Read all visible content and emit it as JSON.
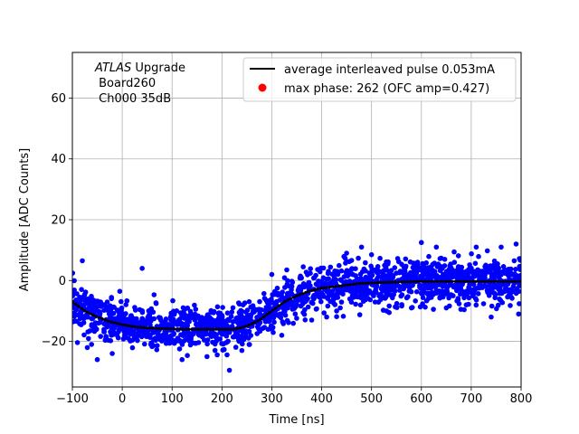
{
  "chart_data": {
    "type": "scatter",
    "xlabel": "Time [ns]",
    "ylabel": "Amplitude [ADC Counts]",
    "xlim": [
      -100,
      800
    ],
    "ylim": [
      -35,
      75
    ],
    "xticks": [
      -100,
      0,
      100,
      200,
      300,
      400,
      500,
      600,
      700,
      800
    ],
    "yticks": [
      -20,
      0,
      20,
      40,
      60
    ],
    "grid": true,
    "legend_position": "top-right",
    "annotation": {
      "italic": "ATLAS",
      "rest": " Upgrade",
      "line2": " Board260",
      "line3": " Ch000 35dB"
    },
    "legend": [
      {
        "label": "average interleaved pulse 0.053mA",
        "kind": "line",
        "color": "#000000"
      },
      {
        "label": "max phase: 262 (OFC amp=0.427)",
        "kind": "marker",
        "color": "#ff0000"
      }
    ],
    "series": [
      {
        "kind": "scatter",
        "color": "#0000ff",
        "noise_sigma": 3.5,
        "outliers": [
          [
            -80,
            6.5
          ],
          [
            -50,
            -26
          ],
          [
            -20,
            -24
          ],
          [
            40,
            4
          ],
          [
            120,
            -26
          ],
          [
            170,
            -25
          ],
          [
            215,
            -29.5
          ],
          [
            240,
            -23
          ],
          [
            300,
            2
          ],
          [
            320,
            -18
          ],
          [
            330,
            3.5
          ],
          [
            380,
            -13
          ],
          [
            410,
            -12
          ],
          [
            430,
            -10
          ],
          [
            450,
            9
          ],
          [
            480,
            11
          ],
          [
            500,
            8.5
          ],
          [
            530,
            -10
          ],
          [
            580,
            -9
          ],
          [
            600,
            12.5
          ],
          [
            630,
            11
          ],
          [
            650,
            -9
          ],
          [
            690,
            -8
          ],
          [
            710,
            11
          ],
          [
            740,
            -12
          ],
          [
            760,
            11
          ],
          [
            790,
            12
          ],
          [
            795,
            -11
          ]
        ]
      },
      {
        "name": "average interleaved pulse 0.053mA",
        "kind": "line",
        "color": "#000000",
        "x": [
          -100,
          -75,
          -50,
          -25,
          0,
          25,
          50,
          75,
          100,
          125,
          150,
          175,
          200,
          225,
          250,
          275,
          300,
          325,
          350,
          375,
          400,
          425,
          450,
          475,
          500,
          525,
          550,
          575,
          600,
          625,
          650,
          675,
          700,
          725,
          750,
          775,
          800
        ],
        "y": [
          -7,
          -10,
          -12,
          -13.5,
          -14.5,
          -15.2,
          -15.6,
          -15.8,
          -15.9,
          -16,
          -16,
          -16,
          -16,
          -16,
          -15,
          -13,
          -10,
          -7,
          -5,
          -3.5,
          -2.5,
          -2,
          -1.5,
          -1,
          -0.8,
          -0.6,
          -0.5,
          -0.4,
          -0.3,
          -0.3,
          -0.3,
          -0.3,
          -0.3,
          -0.3,
          -0.3,
          -0.3,
          -0.3
        ]
      }
    ]
  }
}
